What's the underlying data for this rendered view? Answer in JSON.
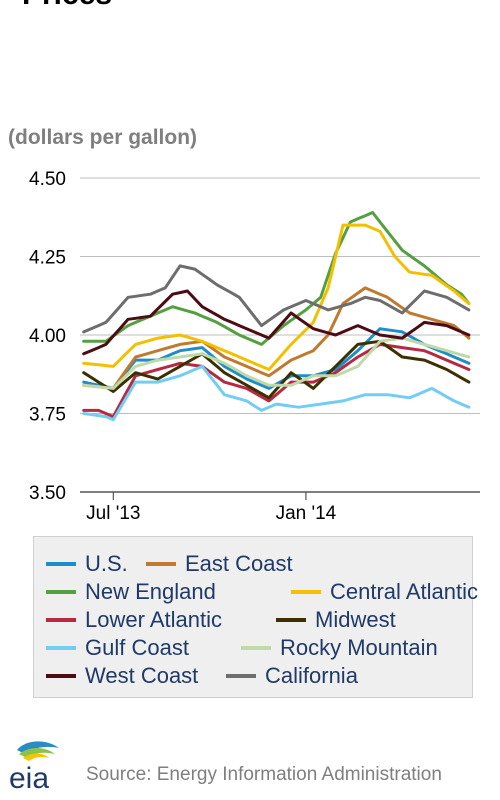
{
  "page": {
    "title": "Prices",
    "unit_label": "(dollars per gallon)",
    "source": "Source: Energy Information Administration",
    "logo_text": "eia",
    "logo_icon": "eia-logo-icon"
  },
  "chart_data": {
    "type": "line",
    "title": "Prices",
    "ylabel": "(dollars per gallon)",
    "ylim": [
      3.5,
      4.5
    ],
    "y_ticks": [
      3.5,
      3.75,
      4.0,
      4.25,
      4.5
    ],
    "y_tick_labels": [
      "3.50",
      "3.75",
      "4.00",
      "4.25",
      "4.50"
    ],
    "x_tick_labels": [
      "Jul '13",
      "Jan '14"
    ],
    "x_tick_positions": [
      4,
      30
    ],
    "x_count": 53,
    "grid": true,
    "legend_position": "bottom",
    "series": [
      {
        "name": "U.S.",
        "color": "#1f8dc9",
        "anchors": [
          [
            0,
            3.85
          ],
          [
            4,
            3.83
          ],
          [
            7,
            3.92
          ],
          [
            10,
            3.92
          ],
          [
            13,
            3.95
          ],
          [
            16,
            3.96
          ],
          [
            19,
            3.9
          ],
          [
            22,
            3.86
          ],
          [
            25,
            3.83
          ],
          [
            28,
            3.87
          ],
          [
            31,
            3.87
          ],
          [
            34,
            3.89
          ],
          [
            37,
            3.95
          ],
          [
            40,
            4.02
          ],
          [
            43,
            4.01
          ],
          [
            46,
            3.97
          ],
          [
            49,
            3.94
          ],
          [
            52,
            3.91
          ]
        ]
      },
      {
        "name": "East Coast",
        "color": "#c07a30",
        "anchors": [
          [
            0,
            3.84
          ],
          [
            4,
            3.83
          ],
          [
            7,
            3.93
          ],
          [
            10,
            3.95
          ],
          [
            13,
            3.97
          ],
          [
            16,
            3.98
          ],
          [
            19,
            3.93
          ],
          [
            22,
            3.9
          ],
          [
            25,
            3.87
          ],
          [
            28,
            3.92
          ],
          [
            31,
            3.95
          ],
          [
            33,
            4.0
          ],
          [
            35,
            4.1
          ],
          [
            38,
            4.15
          ],
          [
            41,
            4.12
          ],
          [
            44,
            4.07
          ],
          [
            47,
            4.05
          ],
          [
            50,
            4.03
          ],
          [
            52,
            3.99
          ]
        ]
      },
      {
        "name": "New England",
        "color": "#54a040",
        "anchors": [
          [
            0,
            3.98
          ],
          [
            3,
            3.98
          ],
          [
            6,
            4.03
          ],
          [
            9,
            4.06
          ],
          [
            12,
            4.09
          ],
          [
            15,
            4.07
          ],
          [
            18,
            4.04
          ],
          [
            21,
            4.0
          ],
          [
            24,
            3.97
          ],
          [
            27,
            4.03
          ],
          [
            30,
            4.08
          ],
          [
            32,
            4.12
          ],
          [
            34,
            4.26
          ],
          [
            36,
            4.36
          ],
          [
            38,
            4.38
          ],
          [
            39,
            4.39
          ],
          [
            41,
            4.33
          ],
          [
            43,
            4.27
          ],
          [
            46,
            4.22
          ],
          [
            49,
            4.16
          ],
          [
            51,
            4.13
          ],
          [
            52,
            4.1
          ]
        ]
      },
      {
        "name": "Central Atlantic",
        "color": "#f4bf00",
        "anchors": [
          [
            0,
            3.91
          ],
          [
            4,
            3.9
          ],
          [
            7,
            3.97
          ],
          [
            10,
            3.99
          ],
          [
            13,
            4.0
          ],
          [
            16,
            3.98
          ],
          [
            19,
            3.95
          ],
          [
            22,
            3.92
          ],
          [
            25,
            3.89
          ],
          [
            28,
            3.97
          ],
          [
            31,
            4.04
          ],
          [
            33,
            4.15
          ],
          [
            35,
            4.35
          ],
          [
            38,
            4.35
          ],
          [
            40,
            4.33
          ],
          [
            42,
            4.25
          ],
          [
            44,
            4.2
          ],
          [
            47,
            4.19
          ],
          [
            50,
            4.14
          ],
          [
            52,
            4.1
          ]
        ]
      },
      {
        "name": "Lower Atlantic",
        "color": "#b52a42",
        "anchors": [
          [
            0,
            3.76
          ],
          [
            2,
            3.76
          ],
          [
            4,
            3.74
          ],
          [
            7,
            3.87
          ],
          [
            10,
            3.89
          ],
          [
            13,
            3.91
          ],
          [
            16,
            3.9
          ],
          [
            19,
            3.85
          ],
          [
            22,
            3.83
          ],
          [
            25,
            3.79
          ],
          [
            28,
            3.85
          ],
          [
            31,
            3.85
          ],
          [
            34,
            3.88
          ],
          [
            37,
            3.93
          ],
          [
            40,
            3.97
          ],
          [
            43,
            3.96
          ],
          [
            46,
            3.95
          ],
          [
            49,
            3.92
          ],
          [
            52,
            3.89
          ]
        ]
      },
      {
        "name": "Midwest",
        "color": "#3c3000",
        "anchors": [
          [
            0,
            3.88
          ],
          [
            4,
            3.82
          ],
          [
            7,
            3.88
          ],
          [
            10,
            3.86
          ],
          [
            13,
            3.9
          ],
          [
            16,
            3.94
          ],
          [
            19,
            3.88
          ],
          [
            22,
            3.84
          ],
          [
            25,
            3.8
          ],
          [
            28,
            3.88
          ],
          [
            31,
            3.83
          ],
          [
            34,
            3.9
          ],
          [
            37,
            3.97
          ],
          [
            40,
            3.98
          ],
          [
            43,
            3.93
          ],
          [
            46,
            3.92
          ],
          [
            49,
            3.89
          ],
          [
            52,
            3.85
          ]
        ]
      },
      {
        "name": "Gulf Coast",
        "color": "#72cdf4",
        "anchors": [
          [
            0,
            3.75
          ],
          [
            3,
            3.74
          ],
          [
            4,
            3.73
          ],
          [
            7,
            3.85
          ],
          [
            10,
            3.85
          ],
          [
            13,
            3.87
          ],
          [
            16,
            3.9
          ],
          [
            19,
            3.81
          ],
          [
            22,
            3.79
          ],
          [
            24,
            3.76
          ],
          [
            26,
            3.78
          ],
          [
            29,
            3.77
          ],
          [
            32,
            3.78
          ],
          [
            35,
            3.79
          ],
          [
            38,
            3.81
          ],
          [
            41,
            3.81
          ],
          [
            44,
            3.8
          ],
          [
            47,
            3.83
          ],
          [
            50,
            3.79
          ],
          [
            52,
            3.77
          ]
        ]
      },
      {
        "name": "Rocky Mountain",
        "color": "#bfd9a8",
        "anchors": [
          [
            0,
            3.84
          ],
          [
            4,
            3.83
          ],
          [
            7,
            3.9
          ],
          [
            10,
            3.92
          ],
          [
            13,
            3.93
          ],
          [
            16,
            3.94
          ],
          [
            19,
            3.91
          ],
          [
            22,
            3.87
          ],
          [
            25,
            3.84
          ],
          [
            28,
            3.84
          ],
          [
            31,
            3.87
          ],
          [
            34,
            3.87
          ],
          [
            37,
            3.9
          ],
          [
            40,
            3.98
          ],
          [
            43,
            3.99
          ],
          [
            46,
            3.97
          ],
          [
            49,
            3.95
          ],
          [
            52,
            3.93
          ]
        ]
      },
      {
        "name": "West Coast",
        "color": "#4d0c14",
        "anchors": [
          [
            0,
            3.94
          ],
          [
            3,
            3.97
          ],
          [
            6,
            4.05
          ],
          [
            9,
            4.06
          ],
          [
            12,
            4.13
          ],
          [
            14,
            4.14
          ],
          [
            16,
            4.09
          ],
          [
            19,
            4.05
          ],
          [
            22,
            4.02
          ],
          [
            25,
            3.99
          ],
          [
            28,
            4.07
          ],
          [
            31,
            4.02
          ],
          [
            34,
            4.0
          ],
          [
            37,
            4.03
          ],
          [
            40,
            4.0
          ],
          [
            43,
            3.99
          ],
          [
            46,
            4.04
          ],
          [
            49,
            4.03
          ],
          [
            52,
            4.0
          ]
        ]
      },
      {
        "name": "California",
        "color": "#6d6d6d",
        "anchors": [
          [
            0,
            4.01
          ],
          [
            3,
            4.04
          ],
          [
            6,
            4.12
          ],
          [
            9,
            4.13
          ],
          [
            11,
            4.15
          ],
          [
            13,
            4.22
          ],
          [
            15,
            4.21
          ],
          [
            18,
            4.16
          ],
          [
            21,
            4.12
          ],
          [
            24,
            4.03
          ],
          [
            27,
            4.08
          ],
          [
            30,
            4.11
          ],
          [
            33,
            4.08
          ],
          [
            36,
            4.1
          ],
          [
            38,
            4.12
          ],
          [
            40,
            4.11
          ],
          [
            43,
            4.07
          ],
          [
            46,
            4.14
          ],
          [
            49,
            4.12
          ],
          [
            52,
            4.08
          ]
        ]
      }
    ]
  }
}
